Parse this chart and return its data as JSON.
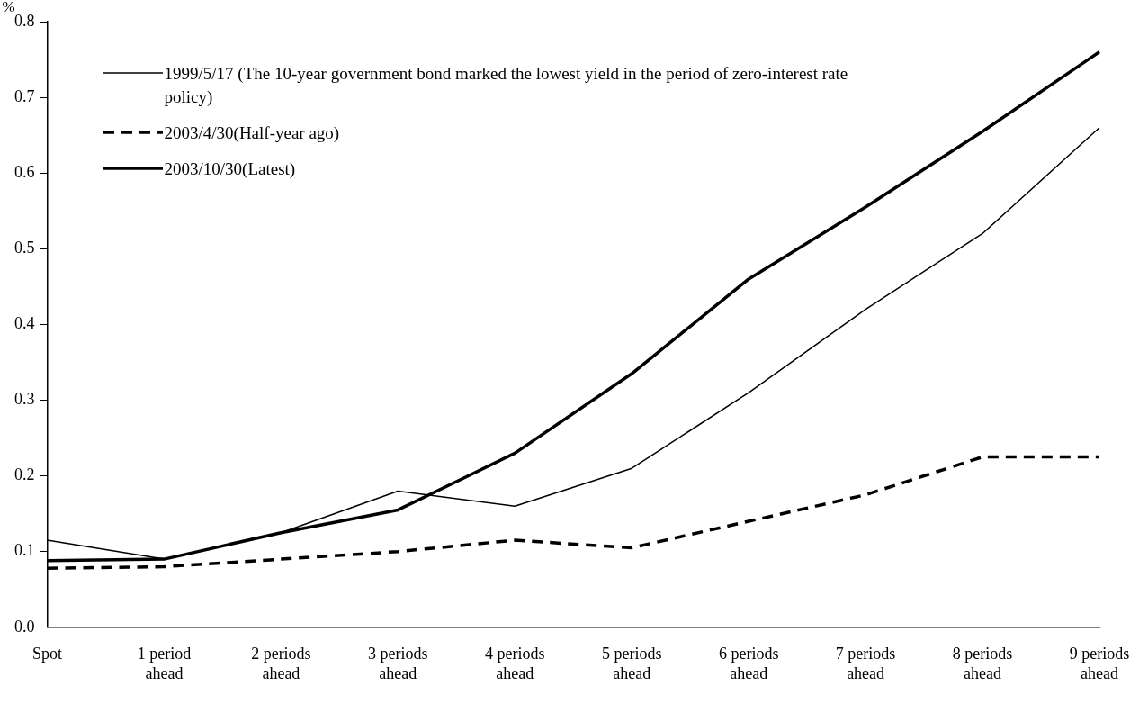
{
  "chart_data": {
    "type": "line",
    "ylabel": "%",
    "categories": [
      "Spot",
      "1 period ahead",
      "2 periods ahead",
      "3 periods ahead",
      "4 periods ahead",
      "5 periods ahead",
      "6 periods ahead",
      "7 periods ahead",
      "8 periods ahead",
      "9 periods ahead"
    ],
    "series": [
      {
        "name": "1999/5/17 (The 10-year government bond marked the lowest yield in the period of zero-interest rate policy)",
        "color": "#000000",
        "line_style": "solid",
        "values": [
          0.115,
          0.09,
          0.125,
          0.18,
          0.16,
          0.21,
          0.31,
          0.42,
          0.52,
          0.66
        ]
      },
      {
        "name": "2003/4/30(Half-year ago)",
        "color": "#000000",
        "line_style": "dashed",
        "values": [
          0.078,
          0.08,
          0.09,
          0.1,
          0.115,
          0.105,
          0.14,
          0.175,
          0.225,
          0.225
        ]
      },
      {
        "name": "2003/10/30(Latest)",
        "color": "#000000",
        "line_style": "solid",
        "values": [
          0.088,
          0.09,
          0.125,
          0.155,
          0.23,
          0.335,
          0.46,
          0.555,
          0.655,
          0.76
        ]
      }
    ],
    "ylim": [
      0,
      0.8
    ],
    "yticks": [
      {
        "value": 0,
        "label": "0.0"
      },
      0.1,
      0.2,
      0.3,
      0.4,
      0.5,
      0.6,
      0.7,
      0.8
    ],
    "grid": false,
    "legend": "top left",
    "marker": "none"
  }
}
